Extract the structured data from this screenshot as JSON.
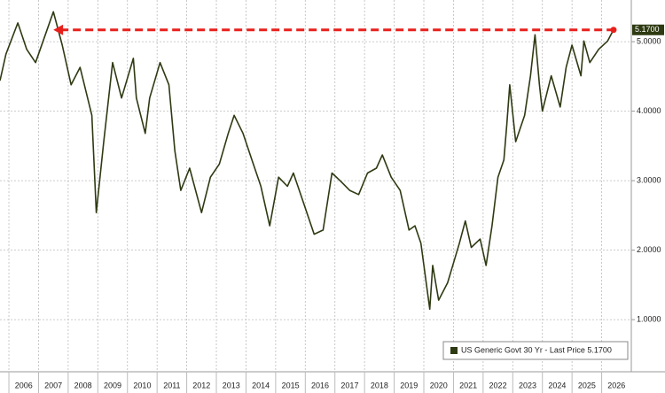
{
  "chart_data": {
    "type": "line",
    "x": [
      2005.7,
      2005.9,
      2006.3,
      2006.6,
      2006.9,
      2007.5,
      2007.8,
      2008.1,
      2008.4,
      2008.8,
      2008.95,
      2009.2,
      2009.5,
      2009.8,
      2010.2,
      2010.3,
      2010.6,
      2010.75,
      2011.1,
      2011.4,
      2011.6,
      2011.8,
      2012.1,
      2012.5,
      2012.8,
      2013.1,
      2013.4,
      2013.6,
      2013.9,
      2014.2,
      2014.5,
      2014.8,
      2015.1,
      2015.4,
      2015.6,
      2015.9,
      2016.3,
      2016.6,
      2016.9,
      2017.2,
      2017.5,
      2017.8,
      2018.1,
      2018.4,
      2018.6,
      2018.9,
      2019.2,
      2019.5,
      2019.7,
      2019.9,
      2020.2,
      2020.3,
      2020.5,
      2020.8,
      2021.2,
      2021.4,
      2021.6,
      2021.9,
      2022.1,
      2022.3,
      2022.5,
      2022.7,
      2022.8,
      2022.9,
      2023.1,
      2023.4,
      2023.6,
      2023.75,
      2023.9,
      2024.0,
      2024.3,
      2024.6,
      2024.8,
      2025.0,
      2025.3,
      2025.4,
      2025.6,
      2025.9,
      2026.2,
      2026.4
    ],
    "series": [
      {
        "name": "US Generic Govt 30 Yr - Last Price 5.1700",
        "color": "#2e3a12",
        "values": [
          4.44,
          4.82,
          5.27,
          4.89,
          4.7,
          5.43,
          4.95,
          4.38,
          4.63,
          3.94,
          2.54,
          3.56,
          4.7,
          4.19,
          4.76,
          4.19,
          3.68,
          4.19,
          4.7,
          4.38,
          3.43,
          2.86,
          3.18,
          2.54,
          3.05,
          3.24,
          3.68,
          3.94,
          3.68,
          3.3,
          2.92,
          2.35,
          3.05,
          2.92,
          3.11,
          2.73,
          2.23,
          2.29,
          3.11,
          2.99,
          2.86,
          2.8,
          3.11,
          3.18,
          3.37,
          3.05,
          2.86,
          2.29,
          2.35,
          2.1,
          1.15,
          1.78,
          1.28,
          1.53,
          2.1,
          2.42,
          2.04,
          2.16,
          1.78,
          2.35,
          3.05,
          3.3,
          3.81,
          4.38,
          3.56,
          3.94,
          4.51,
          5.1,
          4.38,
          4.0,
          4.51,
          4.06,
          4.63,
          4.95,
          4.51,
          5.01,
          4.7,
          4.89,
          5.01,
          5.17
        ]
      }
    ],
    "xlim": [
      2005.7,
      2027.0
    ],
    "xticks": [
      2006,
      2007,
      2008,
      2009,
      2010,
      2011,
      2012,
      2013,
      2014,
      2015,
      2016,
      2017,
      2018,
      2019,
      2020,
      2021,
      2022,
      2023,
      2024,
      2025,
      2026
    ],
    "ylim": [
      0.25,
      5.6
    ],
    "yticks": [
      {
        "value": 1,
        "label": "1.0000"
      },
      {
        "value": 2,
        "label": "2.0000"
      },
      {
        "value": 3,
        "label": "3.0000"
      },
      {
        "value": 4,
        "label": "4.0000"
      },
      {
        "value": 5,
        "label": "5.0000"
      }
    ],
    "grid": true,
    "legend": "lower right",
    "reference_line": {
      "value": 5.17,
      "from": 2007.5,
      "to": 2026.4,
      "label": "5.1700",
      "color": "#e8201c"
    }
  }
}
